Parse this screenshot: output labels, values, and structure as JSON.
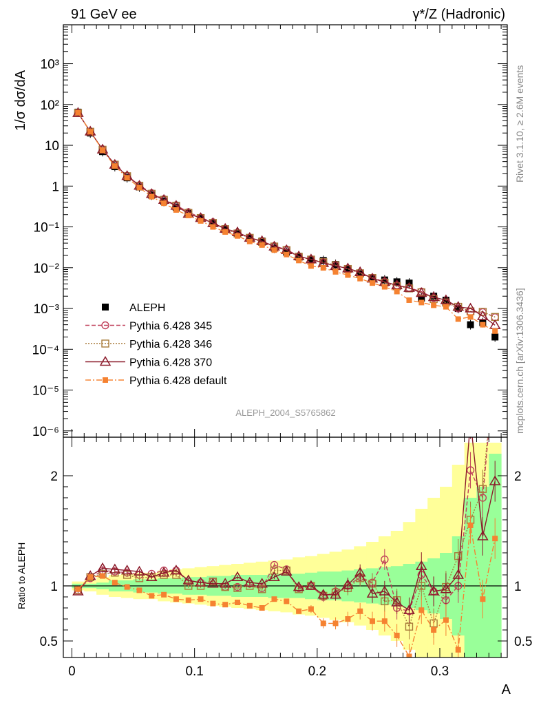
{
  "header": {
    "left": "91 GeV ee",
    "right": "γ*/Z (Hadronic)"
  },
  "side": {
    "rivet": "Rivet 3.1.10, ≥ 2.6M events",
    "mcplots": "mcplots.cern.ch [arXiv:1306.3436]"
  },
  "watermark": "ALEPH_2004_S5765862",
  "colors": {
    "aleph": "#000000",
    "p345": "#c0405a",
    "p346": "#a87a3a",
    "p370": "#8b1a2a",
    "pdef": "#f58231",
    "band_green": "#99ff99",
    "band_yellow": "#ffff99"
  },
  "chart_data": [
    {
      "type": "scatter",
      "ylabel": "1/σ  dσ/dA",
      "yscale": "log",
      "ylim": [
        7e-07,
        9000
      ],
      "xlim": [
        -0.007,
        0.355
      ],
      "yticks": [
        "10⁻⁶",
        "10⁻⁵",
        "10⁻⁴",
        "10⁻³",
        "10⁻²",
        "10⁻¹",
        "1",
        "10",
        "10²",
        "10³"
      ],
      "x": [
        0.005,
        0.015,
        0.025,
        0.035,
        0.045,
        0.055,
        0.065,
        0.075,
        0.085,
        0.095,
        0.105,
        0.115,
        0.125,
        0.135,
        0.145,
        0.155,
        0.165,
        0.175,
        0.185,
        0.195,
        0.205,
        0.215,
        0.225,
        0.235,
        0.245,
        0.255,
        0.265,
        0.275,
        0.285,
        0.295,
        0.305,
        0.315,
        0.325,
        0.335,
        0.345
      ],
      "series": [
        {
          "name": "ALEPH",
          "key": "aleph",
          "values": [
            65,
            20,
            7,
            3.0,
            1.6,
            0.95,
            0.6,
            0.42,
            0.3,
            0.22,
            0.16,
            0.12,
            0.09,
            0.07,
            0.054,
            0.045,
            0.03,
            0.024,
            0.019,
            0.016,
            0.015,
            0.012,
            0.0095,
            0.007,
            0.0055,
            0.005,
            0.0045,
            0.0042,
            0.0018,
            0.002,
            0.0016,
            0.001,
            0.0004,
            0.00045,
            0.0002
          ]
        },
        {
          "name": "Pythia 6.428 345",
          "key": "p345",
          "values": [
            62,
            21.5,
            8,
            3.4,
            1.8,
            1.05,
            0.67,
            0.48,
            0.34,
            0.23,
            0.17,
            0.13,
            0.09,
            0.071,
            0.055,
            0.044,
            0.034,
            0.028,
            0.019,
            0.016,
            0.0135,
            0.0115,
            0.0095,
            0.0075,
            0.0057,
            0.0045,
            0.0037,
            0.0032,
            0.0026,
            0.0018,
            0.0014,
            0.001,
            0.00082,
            0.00081,
            0.00061
          ]
        },
        {
          "name": "Pythia 6.428 346",
          "key": "p346",
          "values": [
            62,
            21.5,
            7.8,
            3.35,
            1.75,
            1.02,
            0.65,
            0.46,
            0.33,
            0.22,
            0.165,
            0.125,
            0.088,
            0.069,
            0.054,
            0.043,
            0.033,
            0.027,
            0.0185,
            0.0158,
            0.0137,
            0.0115,
            0.0093,
            0.0073,
            0.0056,
            0.0043,
            0.0035,
            0.0031,
            0.0025,
            0.0017,
            0.0014,
            0.0011,
            0.00085,
            0.00083,
            0.00062
          ]
        },
        {
          "name": "Pythia 6.428 370",
          "key": "p370",
          "values": [
            62,
            21.8,
            7.9,
            3.35,
            1.77,
            1.02,
            0.64,
            0.46,
            0.33,
            0.21,
            0.165,
            0.124,
            0.09,
            0.074,
            0.054,
            0.045,
            0.033,
            0.027,
            0.019,
            0.016,
            0.013,
            0.011,
            0.0096,
            0.0078,
            0.0054,
            0.0045,
            0.0037,
            0.0032,
            0.0024,
            0.0019,
            0.0016,
            0.0011,
            0.001,
            0.00065,
            0.00039
          ]
        },
        {
          "name": "Pythia 6.428 default",
          "key": "pdef",
          "values": [
            63,
            21.6,
            7.6,
            3.1,
            1.6,
            0.92,
            0.55,
            0.38,
            0.26,
            0.19,
            0.14,
            0.1,
            0.075,
            0.06,
            0.044,
            0.036,
            0.027,
            0.021,
            0.015,
            0.011,
            0.0099,
            0.0079,
            0.0066,
            0.0054,
            0.0042,
            0.0034,
            0.0026,
            0.0016,
            0.0014,
            0.0012,
            0.0011,
            0.00055,
            0.00062,
            0.0004,
            0.00028
          ]
        }
      ],
      "legend_position": "bottom-left"
    },
    {
      "type": "line",
      "ylabel": "Ratio to ALEPH",
      "xlabel": "A",
      "ylim": [
        0.35,
        2.35
      ],
      "xlim": [
        -0.007,
        0.355
      ],
      "xticks": [
        "0",
        "0.1",
        "0.2",
        "0.3"
      ],
      "yticks": [
        "0.5",
        "1",
        "2"
      ],
      "x": [
        0.005,
        0.015,
        0.025,
        0.035,
        0.045,
        0.055,
        0.065,
        0.075,
        0.085,
        0.095,
        0.105,
        0.115,
        0.125,
        0.135,
        0.145,
        0.155,
        0.165,
        0.175,
        0.185,
        0.195,
        0.205,
        0.215,
        0.225,
        0.235,
        0.245,
        0.255,
        0.265,
        0.275,
        0.285,
        0.295,
        0.305,
        0.315,
        0.325,
        0.335,
        0.345
      ],
      "band_green_halfwidth": [
        0.02,
        0.02,
        0.03,
        0.05,
        0.05,
        0.06,
        0.06,
        0.07,
        0.07,
        0.08,
        0.08,
        0.09,
        0.09,
        0.1,
        0.1,
        0.1,
        0.11,
        0.11,
        0.11,
        0.12,
        0.13,
        0.13,
        0.14,
        0.15,
        0.16,
        0.17,
        0.18,
        0.2,
        0.22,
        0.25,
        0.3,
        0.45,
        0.8,
        0.9,
        1.2
      ],
      "band_yellow_halfwidth": [
        0.04,
        0.05,
        0.08,
        0.1,
        0.11,
        0.12,
        0.12,
        0.14,
        0.15,
        0.16,
        0.17,
        0.18,
        0.19,
        0.2,
        0.21,
        0.22,
        0.23,
        0.24,
        0.26,
        0.27,
        0.29,
        0.31,
        0.33,
        0.36,
        0.4,
        0.45,
        0.5,
        0.58,
        0.7,
        0.8,
        0.9,
        1.1,
        1.3,
        1.3,
        1.3
      ],
      "series": [
        {
          "name": "Pythia 6.428 345",
          "key": "p345",
          "values": [
            0.96,
            1.07,
            1.14,
            1.13,
            1.12,
            1.1,
            1.11,
            1.14,
            1.14,
            1.04,
            1.03,
            1.04,
            0.99,
            0.99,
            1.02,
            0.98,
            1.19,
            1.15,
            0.98,
            1.0,
            0.9,
            0.95,
            1.0,
            1.08,
            1.03,
            1.24,
            0.8,
            0.77,
            1.1,
            0.95,
            0.87,
            1.0,
            2.05,
            1.8,
            3.05
          ]
        },
        {
          "name": "Pythia 6.428 346",
          "key": "p346",
          "values": [
            0.96,
            1.08,
            1.11,
            1.12,
            1.1,
            1.07,
            1.08,
            1.1,
            1.1,
            1.0,
            1.0,
            1.04,
            0.99,
            0.98,
            1.0,
            0.97,
            1.14,
            1.14,
            0.97,
            1.0,
            0.91,
            0.94,
            0.98,
            1.07,
            1.02,
            0.86,
            0.87,
            0.63,
            1.0,
            0.66,
            0.99,
            1.27,
            1.6,
            1.88,
            3.1
          ]
        },
        {
          "name": "Pythia 6.428 370",
          "key": "p370",
          "values": [
            0.95,
            1.09,
            1.16,
            1.15,
            1.14,
            1.13,
            1.08,
            1.12,
            1.14,
            1.05,
            1.03,
            1.02,
            1.02,
            1.08,
            1.03,
            1.02,
            1.08,
            1.13,
            0.99,
            1.0,
            0.92,
            0.92,
            1.01,
            1.12,
            0.93,
            0.95,
            0.85,
            0.78,
            1.18,
            0.95,
            0.97,
            1.1,
            2.5,
            1.45,
            1.95
          ]
        },
        {
          "name": "Pythia 6.428 default",
          "key": "pdef",
          "values": [
            0.97,
            1.08,
            1.09,
            1.03,
            0.99,
            0.96,
            0.91,
            0.92,
            0.88,
            0.87,
            0.88,
            0.84,
            0.83,
            0.85,
            0.82,
            0.8,
            0.88,
            0.86,
            0.77,
            0.79,
            0.66,
            0.66,
            0.7,
            0.77,
            0.68,
            0.68,
            0.55,
            0.36,
            0.78,
            0.6,
            0.69,
            0.42,
            1.55,
            0.88,
            1.43
          ]
        }
      ]
    }
  ],
  "legend": [
    {
      "label": "ALEPH",
      "key": "aleph",
      "marker": "square",
      "dash": ""
    },
    {
      "label": "Pythia 6.428 345",
      "key": "p345",
      "marker": "circle",
      "dash": "6,3"
    },
    {
      "label": "Pythia 6.428 346",
      "key": "p346",
      "marker": "open-square",
      "dash": "2,2"
    },
    {
      "label": "Pythia 6.428 370",
      "key": "p370",
      "marker": "triangle",
      "dash": ""
    },
    {
      "label": "Pythia 6.428 default",
      "key": "pdef",
      "marker": "filled-square",
      "dash": "8,3,2,3"
    }
  ]
}
